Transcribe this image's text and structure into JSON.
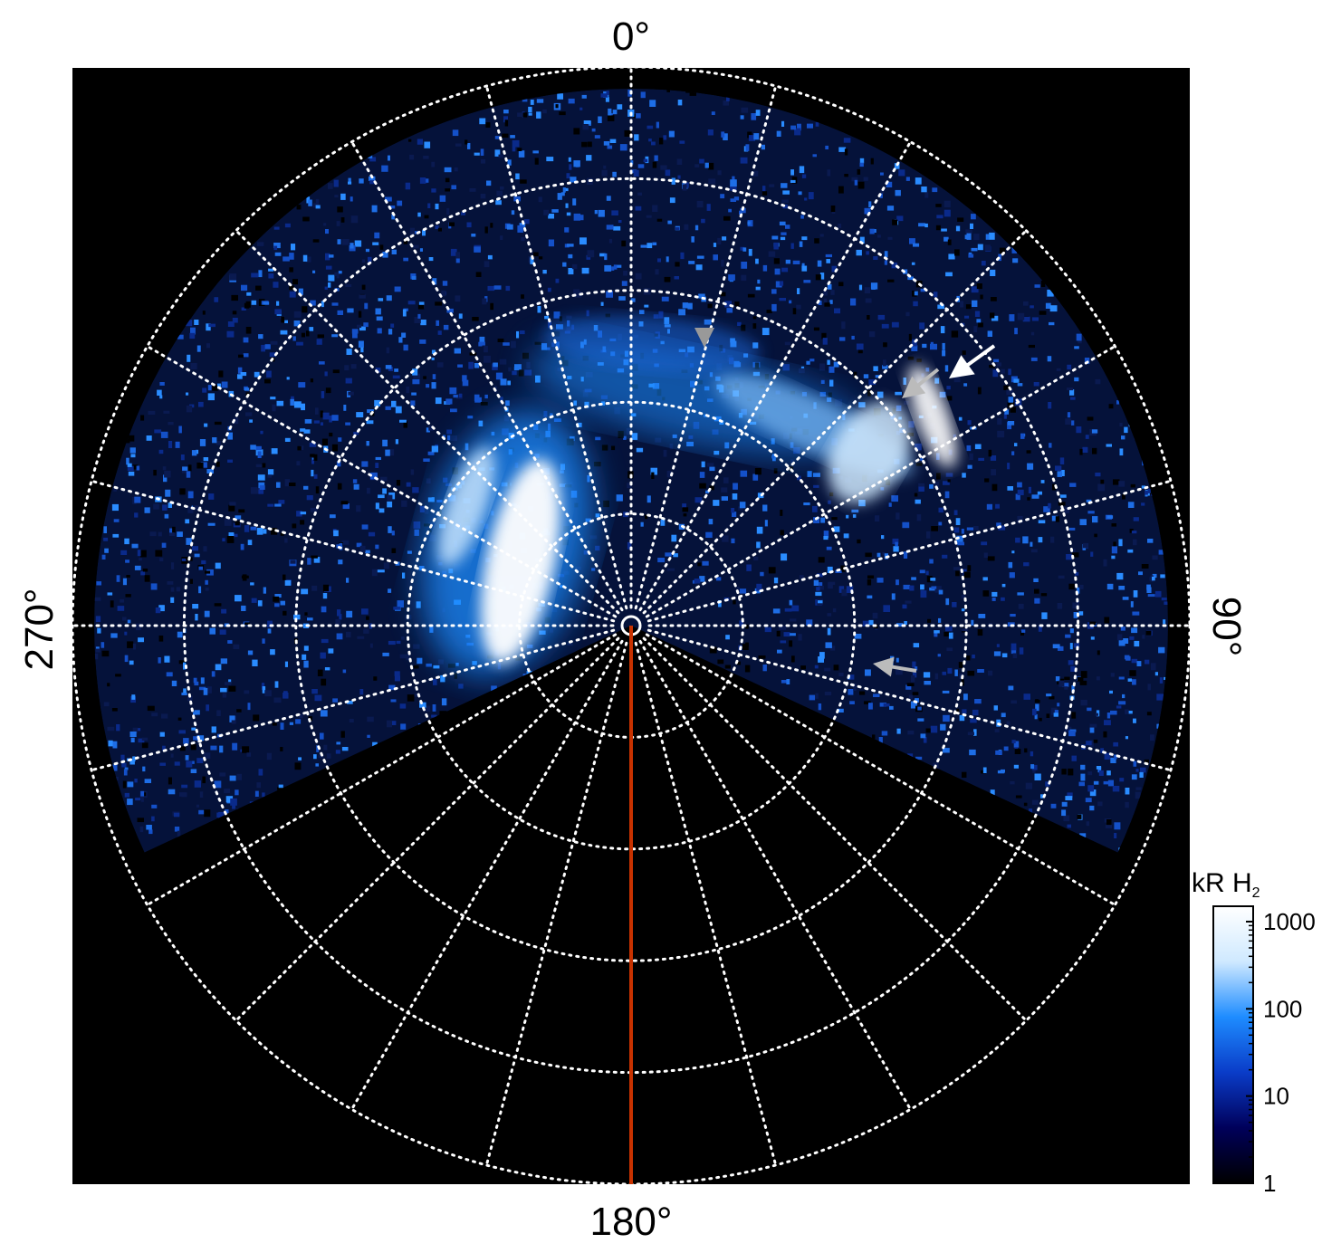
{
  "chart_data": {
    "type": "heatmap",
    "projection": "polar",
    "angle_labels": [
      {
        "angle": 0,
        "text": "0°"
      },
      {
        "angle": 90,
        "text": "90°"
      },
      {
        "angle": 180,
        "text": "180°"
      },
      {
        "angle": 270,
        "text": "270°"
      }
    ],
    "colorbar": {
      "unit": "kR H",
      "species_subscript": "2",
      "scale": "log",
      "range": [
        1,
        1500
      ],
      "ticks": [
        {
          "value": 1,
          "label": "1"
        },
        {
          "value": 10,
          "label": "10"
        },
        {
          "value": 100,
          "label": "100"
        },
        {
          "value": 1000,
          "label": "1000"
        }
      ],
      "colors": [
        "#000000",
        "#00005a",
        "#0a3cc8",
        "#1e8cff",
        "#cfe9ff",
        "#ffffff"
      ]
    },
    "grid": {
      "on": true,
      "rings": 5,
      "spokes_deg": 15,
      "style": "dotted",
      "color": "#ffffff"
    },
    "observed_sector_deg": [
      245,
      115
    ],
    "meridian_line": {
      "angle": 180,
      "color": "#c83200"
    },
    "arrows": [
      {
        "color": "#ffffff"
      },
      {
        "color": "#bbbbbb"
      },
      {
        "color": "#999999"
      },
      {
        "color": "#bbbbbb"
      }
    ]
  }
}
